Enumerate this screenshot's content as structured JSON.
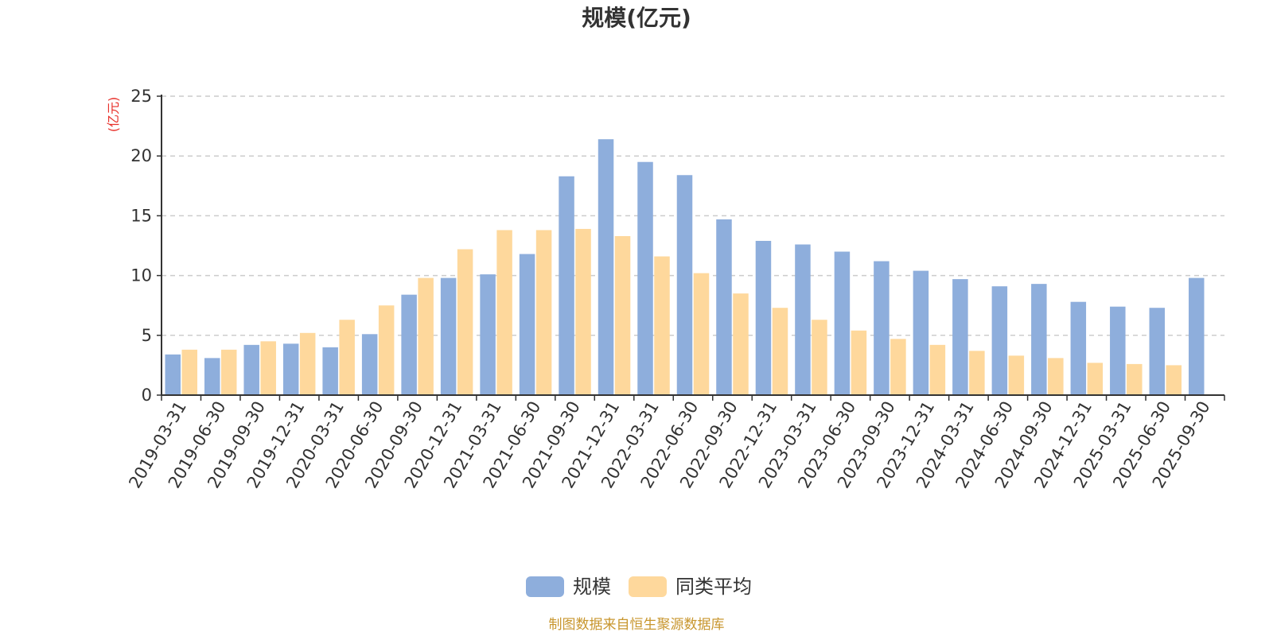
{
  "chart_data": {
    "type": "bar",
    "title": "规模(亿元)",
    "ylabel": "(亿元)",
    "ylim": [
      0,
      25
    ],
    "yticks": [
      0,
      5,
      10,
      15,
      20,
      25
    ],
    "grid": true,
    "legend_position": "bottom-center",
    "categories": [
      "2019-03-31",
      "2019-06-30",
      "2019-09-30",
      "2019-12-31",
      "2020-03-31",
      "2020-06-30",
      "2020-09-30",
      "2020-12-31",
      "2021-03-31",
      "2021-06-30",
      "2021-09-30",
      "2021-12-31",
      "2022-03-31",
      "2022-06-30",
      "2022-09-30",
      "2022-12-31",
      "2023-03-31",
      "2023-06-30",
      "2023-09-30",
      "2023-12-31",
      "2024-03-31",
      "2024-06-30",
      "2024-09-30",
      "2024-12-31",
      "2025-03-31",
      "2025-06-30",
      "2025-09-30"
    ],
    "series": [
      {
        "name": "规模",
        "color": "#8eaedc",
        "values": [
          3.4,
          3.1,
          4.2,
          4.3,
          4.0,
          5.1,
          8.4,
          9.8,
          10.1,
          11.8,
          18.3,
          21.4,
          19.5,
          18.4,
          14.7,
          12.9,
          12.6,
          12.0,
          11.2,
          10.4,
          9.7,
          9.1,
          9.3,
          7.8,
          7.4,
          7.3,
          9.8
        ]
      },
      {
        "name": "同类平均",
        "color": "#fed89c",
        "values": [
          3.8,
          3.8,
          4.5,
          5.2,
          6.3,
          7.5,
          9.8,
          12.2,
          13.8,
          13.8,
          13.9,
          13.3,
          11.6,
          10.2,
          8.5,
          7.3,
          6.3,
          5.4,
          4.7,
          4.2,
          3.7,
          3.3,
          3.1,
          2.7,
          2.6,
          2.5,
          null
        ]
      }
    ],
    "colors": {
      "title": "#333333",
      "ylabel": "#e8302a",
      "axis": "#333333",
      "grid": "#cccccc",
      "source": "#c8962e"
    }
  },
  "footer": {
    "source": "制图数据来自恒生聚源数据库"
  }
}
